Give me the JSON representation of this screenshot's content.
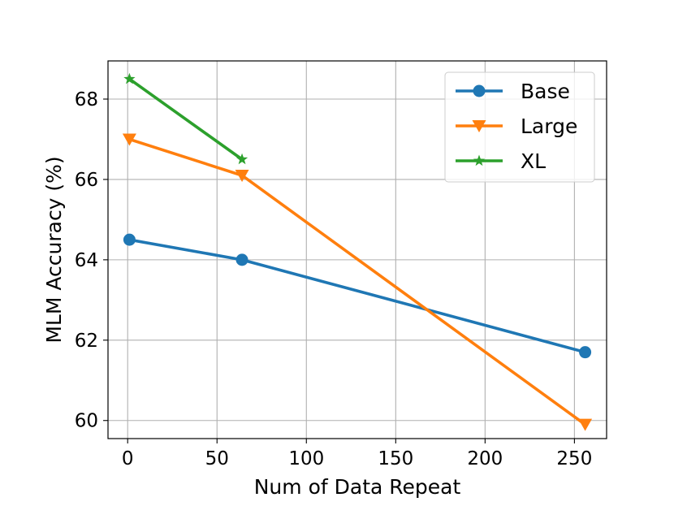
{
  "chart_data": {
    "type": "line",
    "title": "",
    "xlabel": "Num of Data Repeat",
    "ylabel": "MLM Accuracy (%)",
    "xlim": [
      -11,
      268
    ],
    "ylim": [
      59.55,
      68.95
    ],
    "xticks": [
      0,
      50,
      100,
      150,
      200,
      250
    ],
    "yticks": [
      60,
      62,
      64,
      66,
      68
    ],
    "xtick_labels": [
      "0",
      "50",
      "100",
      "150",
      "200",
      "250"
    ],
    "ytick_labels": [
      "60",
      "62",
      "64",
      "66",
      "68"
    ],
    "grid": true,
    "legend_position": "top-right",
    "series": [
      {
        "name": "Base",
        "color": "#1f77b4",
        "marker": "circle",
        "x": [
          1,
          64,
          256
        ],
        "y": [
          64.5,
          64.0,
          61.7
        ]
      },
      {
        "name": "Large",
        "color": "#ff7f0e",
        "marker": "triangle-down",
        "x": [
          1,
          64,
          256
        ],
        "y": [
          67.0,
          66.1,
          59.9
        ]
      },
      {
        "name": "XL",
        "color": "#2ca02c",
        "marker": "star",
        "x": [
          1,
          64
        ],
        "y": [
          68.5,
          66.5
        ]
      }
    ]
  }
}
